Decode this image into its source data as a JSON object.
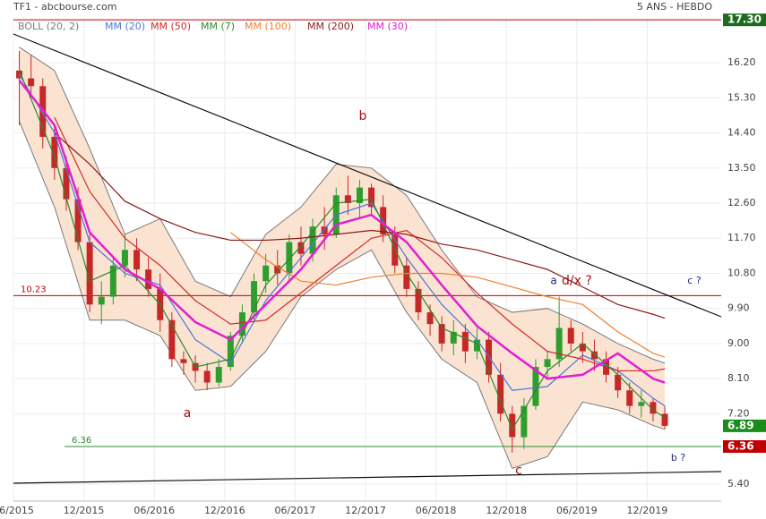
{
  "chart_data": {
    "type": "candlestick",
    "title": "TF1 - abcbourse.com",
    "subtitle": "5 ANS - HEBDO",
    "categories": [
      "06/2015",
      "07/2015",
      "08/2015",
      "09/2015",
      "10/2015",
      "11/2015",
      "12/2015",
      "01/2016",
      "02/2016",
      "03/2016",
      "04/2016",
      "05/2016",
      "06/2016",
      "07/2016",
      "08/2016",
      "09/2016",
      "10/2016",
      "11/2016",
      "12/2016",
      "01/2017",
      "02/2017",
      "03/2017",
      "04/2017",
      "05/2017",
      "06/2017",
      "07/2017",
      "08/2017",
      "09/2017",
      "10/2017",
      "11/2017",
      "12/2017",
      "01/2018",
      "02/2018",
      "03/2018",
      "04/2018",
      "05/2018",
      "06/2018",
      "07/2018",
      "08/2018",
      "09/2018",
      "10/2018",
      "11/2018",
      "12/2018",
      "01/2019",
      "02/2019",
      "03/2019",
      "04/2019",
      "05/2019",
      "06/2019",
      "07/2019",
      "08/2019",
      "09/2019",
      "10/2019",
      "11/2019",
      "12/2019",
      "01/2020"
    ],
    "open": [
      16.0,
      15.8,
      15.6,
      14.3,
      13.5,
      12.7,
      11.6,
      10.0,
      10.2,
      11.0,
      11.4,
      10.9,
      10.4,
      9.6,
      8.6,
      8.5,
      8.3,
      8.0,
      8.4,
      9.2,
      9.8,
      10.6,
      11.0,
      10.8,
      11.6,
      11.3,
      12.0,
      11.8,
      12.8,
      12.6,
      13.0,
      12.5,
      11.8,
      11.0,
      10.4,
      9.8,
      9.5,
      9.0,
      9.3,
      8.8,
      9.1,
      8.2,
      7.2,
      6.6,
      7.4,
      8.4,
      8.6,
      9.4,
      9.0,
      8.8,
      8.6,
      8.2,
      7.8,
      7.4,
      7.5,
      7.2
    ],
    "high": [
      16.5,
      16.4,
      15.8,
      14.6,
      13.8,
      13.0,
      11.8,
      10.6,
      11.2,
      11.8,
      11.7,
      11.2,
      10.8,
      9.8,
      8.8,
      8.7,
      8.5,
      8.6,
      9.3,
      10.0,
      10.8,
      11.3,
      11.4,
      11.8,
      12.0,
      12.2,
      12.5,
      13.0,
      13.3,
      13.2,
      13.1,
      12.8,
      12.0,
      11.2,
      10.6,
      10.0,
      9.7,
      9.6,
      9.5,
      9.4,
      9.3,
      8.5,
      7.4,
      7.6,
      8.6,
      8.8,
      10.2,
      9.6,
      9.3,
      9.1,
      8.8,
      8.4,
      8.0,
      7.8,
      7.6,
      7.4
    ],
    "low": [
      14.6,
      15.3,
      14.0,
      13.2,
      12.4,
      11.4,
      9.8,
      9.5,
      10.0,
      10.7,
      10.6,
      10.2,
      9.3,
      8.4,
      8.2,
      8.0,
      7.8,
      7.9,
      8.3,
      9.0,
      9.6,
      10.3,
      10.5,
      10.6,
      11.0,
      11.1,
      11.4,
      11.7,
      12.3,
      12.2,
      12.3,
      11.6,
      10.8,
      10.2,
      9.6,
      9.2,
      8.8,
      8.7,
      8.5,
      8.6,
      8.0,
      7.0,
      6.2,
      6.3,
      7.3,
      8.1,
      8.4,
      8.8,
      8.5,
      8.3,
      8.0,
      7.6,
      7.2,
      7.1,
      7.0,
      6.8
    ],
    "close": [
      15.8,
      15.6,
      14.3,
      13.5,
      12.7,
      11.6,
      10.0,
      10.2,
      11.0,
      11.4,
      10.9,
      10.4,
      9.6,
      8.6,
      8.5,
      8.3,
      8.0,
      8.4,
      9.2,
      9.8,
      10.6,
      11.0,
      10.8,
      11.6,
      11.3,
      12.0,
      11.8,
      12.8,
      12.6,
      13.0,
      12.5,
      11.8,
      11.0,
      10.4,
      9.8,
      9.5,
      9.0,
      9.3,
      8.8,
      9.1,
      8.2,
      7.2,
      6.6,
      7.4,
      8.4,
      8.6,
      9.4,
      9.0,
      8.8,
      8.6,
      8.2,
      7.8,
      7.4,
      7.5,
      7.2,
      6.89
    ],
    "up_color": "#2e9e2e",
    "down_color": "#c62828",
    "bands": [
      {
        "name": "BOLL (20, 2)",
        "color": "#7a7a7a",
        "fill": "#fbe3d2",
        "x": [
          "06/2015",
          "09/2015",
          "12/2015",
          "03/2016",
          "06/2016",
          "09/2016",
          "12/2016",
          "03/2017",
          "06/2017",
          "09/2017",
          "12/2017",
          "03/2018",
          "06/2018",
          "09/2018",
          "12/2018",
          "03/2019",
          "06/2019",
          "09/2019",
          "12/2019",
          "01/2020"
        ],
        "upper": [
          16.6,
          16.0,
          14.0,
          11.8,
          12.2,
          10.6,
          10.2,
          11.8,
          12.5,
          13.6,
          13.5,
          12.8,
          11.4,
          10.2,
          9.8,
          9.9,
          9.5,
          9.0,
          8.6,
          8.5
        ],
        "lower": [
          14.7,
          12.5,
          9.6,
          9.6,
          9.2,
          7.8,
          7.9,
          8.8,
          10.2,
          10.9,
          11.4,
          9.8,
          8.6,
          8.0,
          5.8,
          6.1,
          7.5,
          7.3,
          6.9,
          6.8
        ]
      }
    ],
    "series": [
      {
        "name": "MM (20)",
        "color": "#4a78d6",
        "x": [
          "06/2015",
          "09/2015",
          "12/2015",
          "03/2016",
          "06/2016",
          "09/2016",
          "12/2016",
          "03/2017",
          "06/2017",
          "09/2017",
          "12/2017",
          "03/2018",
          "06/2018",
          "09/2018",
          "12/2018",
          "03/2019",
          "06/2019",
          "09/2019",
          "12/2019",
          "01/2020"
        ],
        "values": [
          15.9,
          14.4,
          11.6,
          10.8,
          10.5,
          9.1,
          8.5,
          10.1,
          11.2,
          12.3,
          12.6,
          11.2,
          10.0,
          9.1,
          7.8,
          7.9,
          8.7,
          8.3,
          7.6,
          7.4
        ]
      },
      {
        "name": "MM (50)",
        "color": "#d42a2a",
        "x": [
          "09/2015",
          "12/2015",
          "03/2016",
          "06/2016",
          "09/2016",
          "12/2016",
          "03/2017",
          "06/2017",
          "09/2017",
          "12/2017",
          "03/2018",
          "06/2018",
          "09/2018",
          "12/2018",
          "03/2019",
          "06/2019",
          "09/2019",
          "12/2019",
          "01/2020"
        ],
        "values": [
          14.8,
          12.9,
          11.7,
          11.0,
          10.1,
          9.5,
          9.6,
          10.3,
          11.0,
          11.7,
          11.9,
          11.2,
          10.3,
          9.5,
          8.8,
          8.6,
          8.3,
          8.3,
          8.35
        ]
      },
      {
        "name": "MM (7)",
        "color": "#2a8a2a",
        "x": [
          "06/2015",
          "09/2015",
          "12/2015",
          "03/2016",
          "06/2016",
          "09/2016",
          "12/2016",
          "03/2017",
          "06/2017",
          "09/2017",
          "12/2017",
          "03/2018",
          "06/2018",
          "09/2018",
          "12/2018",
          "03/2019",
          "06/2019",
          "09/2019",
          "12/2019",
          "01/2020"
        ],
        "values": [
          16.0,
          13.8,
          10.6,
          11.0,
          10.0,
          8.4,
          8.6,
          10.5,
          11.5,
          12.6,
          12.7,
          10.8,
          9.4,
          9.0,
          6.8,
          8.3,
          9.0,
          8.2,
          7.3,
          7.1
        ]
      },
      {
        "name": "MM (100)",
        "color": "#f08030",
        "x": [
          "12/2016",
          "03/2017",
          "06/2017",
          "09/2017",
          "12/2017",
          "03/2018",
          "06/2018",
          "09/2018",
          "12/2018",
          "03/2019",
          "06/2019",
          "09/2019",
          "12/2019",
          "01/2020"
        ],
        "values": [
          11.85,
          11.15,
          10.6,
          10.5,
          10.7,
          10.8,
          10.8,
          10.7,
          10.45,
          10.2,
          10.0,
          9.3,
          8.75,
          8.65
        ]
      },
      {
        "name": "MM (200)",
        "color": "#8b1a1a",
        "x": [
          "09/2015",
          "12/2015",
          "03/2016",
          "06/2016",
          "09/2016",
          "12/2016",
          "03/2017",
          "06/2017",
          "09/2017",
          "12/2017",
          "03/2018",
          "06/2018",
          "09/2018",
          "12/2018",
          "03/2019",
          "06/2019",
          "09/2019",
          "12/2019",
          "01/2020"
        ],
        "values": [
          14.4,
          13.6,
          12.65,
          12.2,
          11.85,
          11.65,
          11.65,
          11.7,
          11.8,
          11.9,
          11.8,
          11.55,
          11.4,
          11.15,
          10.9,
          10.45,
          10.0,
          9.75,
          9.65
        ]
      },
      {
        "name": "MM (30)",
        "color": "#e020d0",
        "x": [
          "06/2015",
          "09/2015",
          "12/2015",
          "03/2016",
          "06/2016",
          "09/2016",
          "12/2016",
          "03/2017",
          "06/2017",
          "09/2017",
          "12/2017",
          "03/2018",
          "06/2018",
          "09/2018",
          "12/2018",
          "03/2019",
          "06/2019",
          "09/2019",
          "12/2019",
          "01/2020"
        ],
        "values": [
          15.75,
          14.6,
          11.85,
          10.9,
          10.4,
          9.55,
          9.1,
          10.0,
          10.9,
          12.05,
          12.3,
          11.6,
          10.5,
          9.45,
          8.75,
          8.1,
          8.2,
          8.75,
          8.1,
          8.0
        ]
      }
    ],
    "ylim": [
      4.96,
      17.35
    ],
    "yticks": [
      {
        "value": 5.4,
        "label": "5.40"
      },
      {
        "value": 7.2,
        "label": "7.20"
      },
      {
        "value": 8.1,
        "label": "8.10"
      },
      {
        "value": 9.0,
        "label": "9.00"
      },
      {
        "value": 9.9,
        "label": "9.90"
      },
      {
        "value": 10.8,
        "label": "10.80"
      },
      {
        "value": 11.7,
        "label": "11.70"
      },
      {
        "value": 12.6,
        "label": "12.60"
      },
      {
        "value": 13.5,
        "label": "13.50"
      },
      {
        "value": 14.4,
        "label": "14.40"
      },
      {
        "value": 15.3,
        "label": "15.30"
      },
      {
        "value": 16.2,
        "label": "16.20"
      }
    ],
    "high_marker": {
      "value": 17.3,
      "label": "17.30",
      "color": "#1d6b1d"
    },
    "last_price": {
      "value": 6.89,
      "color": "#1a8c1a"
    },
    "levels": [
      {
        "value": 10.23,
        "color": "#c00000"
      },
      {
        "value": 6.36,
        "color": "#2e8b2e"
      }
    ],
    "annotations": [
      "a",
      "b",
      "c",
      "a",
      "d/x ?",
      "c ?",
      "b ?"
    ],
    "grid": true
  }
}
